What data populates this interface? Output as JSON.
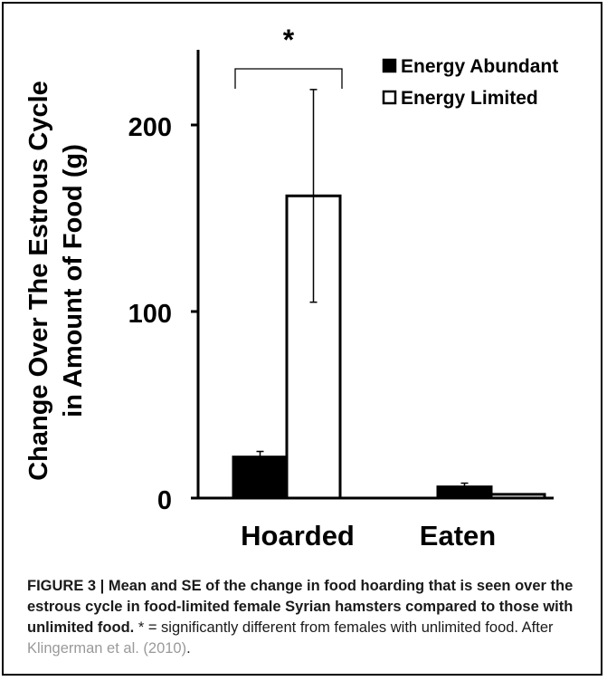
{
  "chart_data": {
    "type": "bar",
    "categories": [
      "Hoarded",
      "Eaten"
    ],
    "series": [
      {
        "name": "Energy Abundant",
        "fill": "#000000",
        "values": [
          22,
          6
        ],
        "errors": [
          3,
          2
        ]
      },
      {
        "name": "Energy Limited",
        "fill": "#ffffff",
        "values": [
          162,
          2
        ],
        "errors": [
          57,
          0
        ]
      }
    ],
    "ylabel": "Change Over The Estrous Cycle in Amount of Food (g)",
    "ylabel_lines": [
      "Change Over The Estrous Cycle",
      "in Amount of Food (g)"
    ],
    "yticks": [
      0,
      100,
      200
    ],
    "ytick_labels": [
      "0",
      "100",
      "200"
    ],
    "ylim": [
      0,
      240
    ],
    "legend_position": "top-right",
    "grid": false,
    "significance": {
      "label": "*",
      "between": "Hoarded"
    }
  },
  "caption": {
    "bold": "FIGURE 3 | Mean and SE of the change in food hoarding that is seen over the estrous cycle in food-limited female Syrian hamsters compared to those with unlimited food.",
    "regular": " * = significantly different from females with unlimited food. After ",
    "citation": "Klingerman et al. (2010)",
    "end": "."
  }
}
